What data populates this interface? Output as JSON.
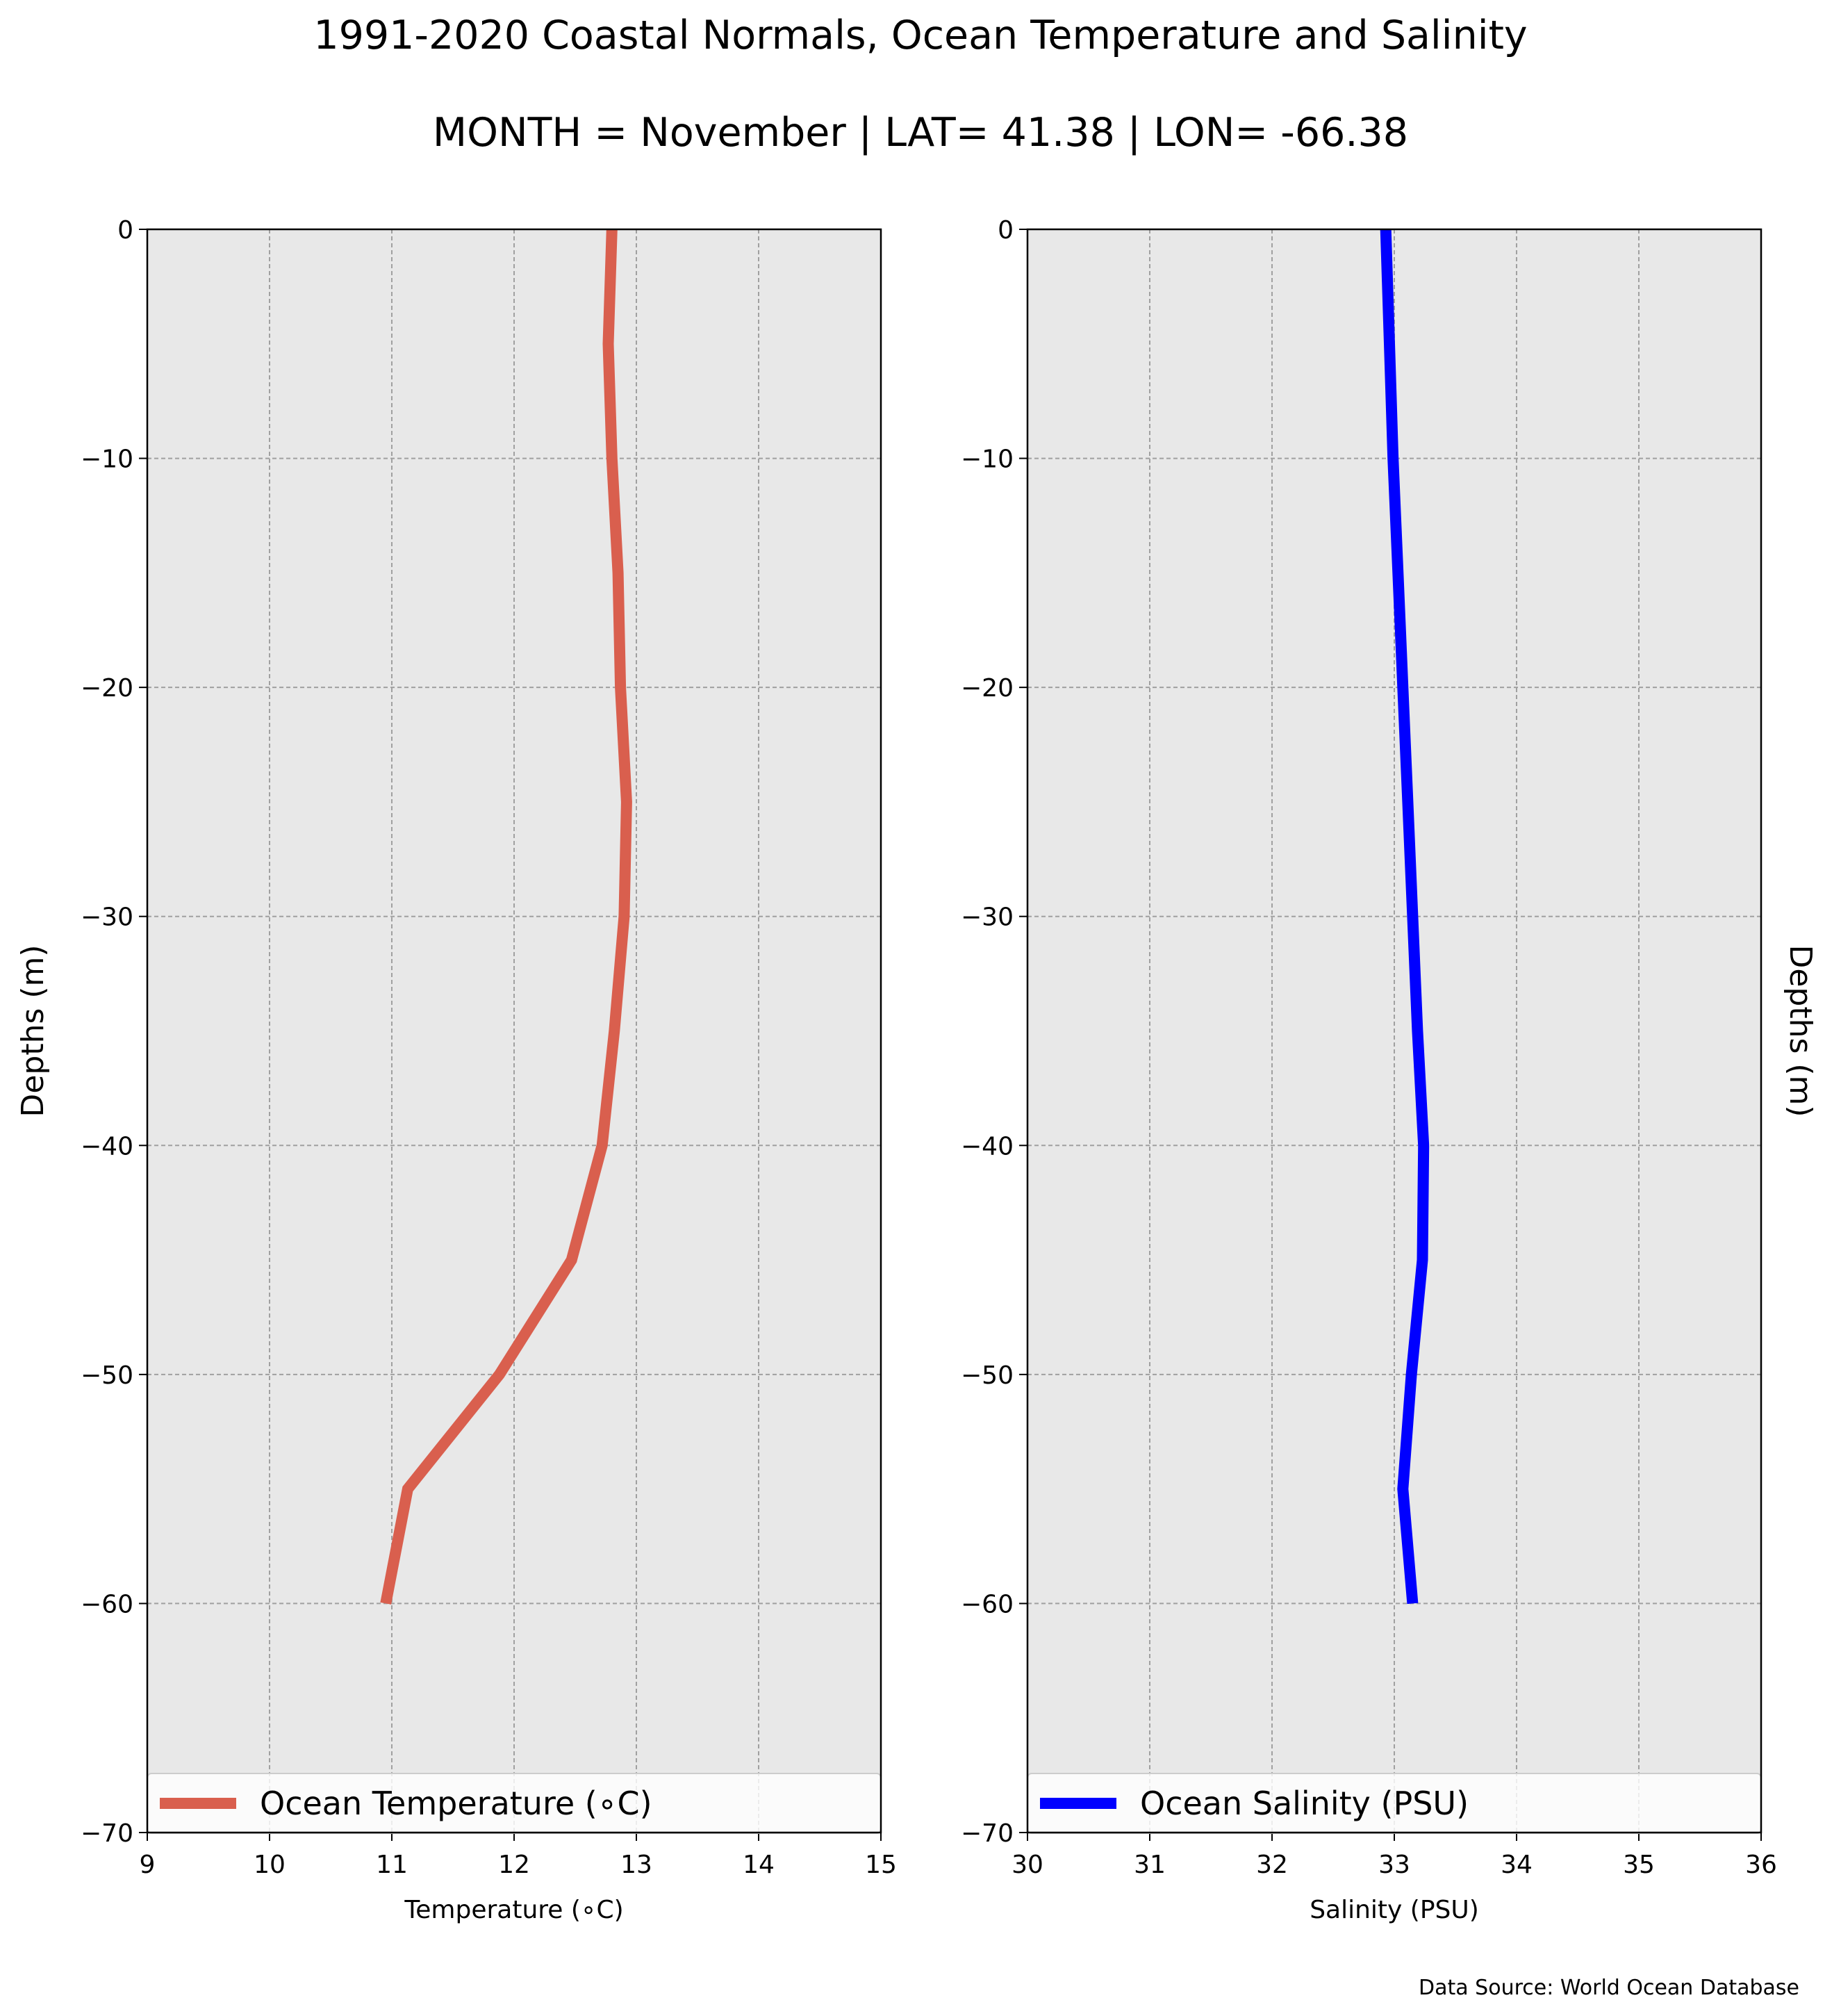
{
  "figure": {
    "title_line1": "1991-2020 Coastal Normals, Ocean Temperature and Salinity",
    "title_line2": "MONTH = November | LAT= 41.38 | LON= -66.38",
    "source_note": "Data Source: World Ocean Database",
    "background_color": "#e8e8e8",
    "grid_color": "#a0a0a0"
  },
  "chart_data": [
    {
      "type": "line",
      "orientation": "profile (x = value, y = depth)",
      "xlabel": "Temperature ($^\\circ$C)",
      "xlabel_display": "Temperature (∘C)",
      "ylabel": "Depths (m)",
      "xlim": [
        9,
        15
      ],
      "ylim": [
        -70,
        0
      ],
      "xticks": [
        "9",
        "10",
        "11",
        "12",
        "13",
        "14",
        "15"
      ],
      "yticks": [
        "0",
        "−10",
        "−20",
        "−30",
        "−40",
        "−50",
        "−60",
        "−70"
      ],
      "grid": true,
      "legend_position": "bottom",
      "series": [
        {
          "name": "Ocean Temperature (∘C)",
          "color": "#d95f4e",
          "depth": [
            0,
            -5,
            -10,
            -15,
            -20,
            -25,
            -30,
            -35,
            -40,
            -45,
            -50,
            -55,
            -60
          ],
          "values": [
            12.8,
            12.77,
            12.8,
            12.85,
            12.87,
            12.92,
            12.9,
            12.82,
            12.72,
            12.47,
            11.88,
            11.13,
            10.95
          ]
        }
      ]
    },
    {
      "type": "line",
      "orientation": "profile (x = value, y = depth)",
      "xlabel": "Salinity (PSU)",
      "ylabel": "Depths (m)",
      "xlim": [
        30,
        36
      ],
      "ylim": [
        -70,
        0
      ],
      "xticks": [
        "30",
        "31",
        "32",
        "33",
        "34",
        "35",
        "36"
      ],
      "yticks": [
        "0",
        "−10",
        "−20",
        "−30",
        "−40",
        "−50",
        "−60",
        "−70"
      ],
      "grid": true,
      "legend_position": "bottom",
      "series": [
        {
          "name": "Ocean Salinity (PSU)",
          "color": "#0000ff",
          "depth": [
            0,
            -5,
            -10,
            -15,
            -20,
            -25,
            -30,
            -35,
            -40,
            -45,
            -50,
            -55,
            -60
          ],
          "values": [
            32.93,
            32.96,
            32.99,
            33.03,
            33.07,
            33.11,
            33.15,
            33.19,
            33.24,
            33.23,
            33.14,
            33.07,
            33.15
          ]
        }
      ]
    }
  ]
}
